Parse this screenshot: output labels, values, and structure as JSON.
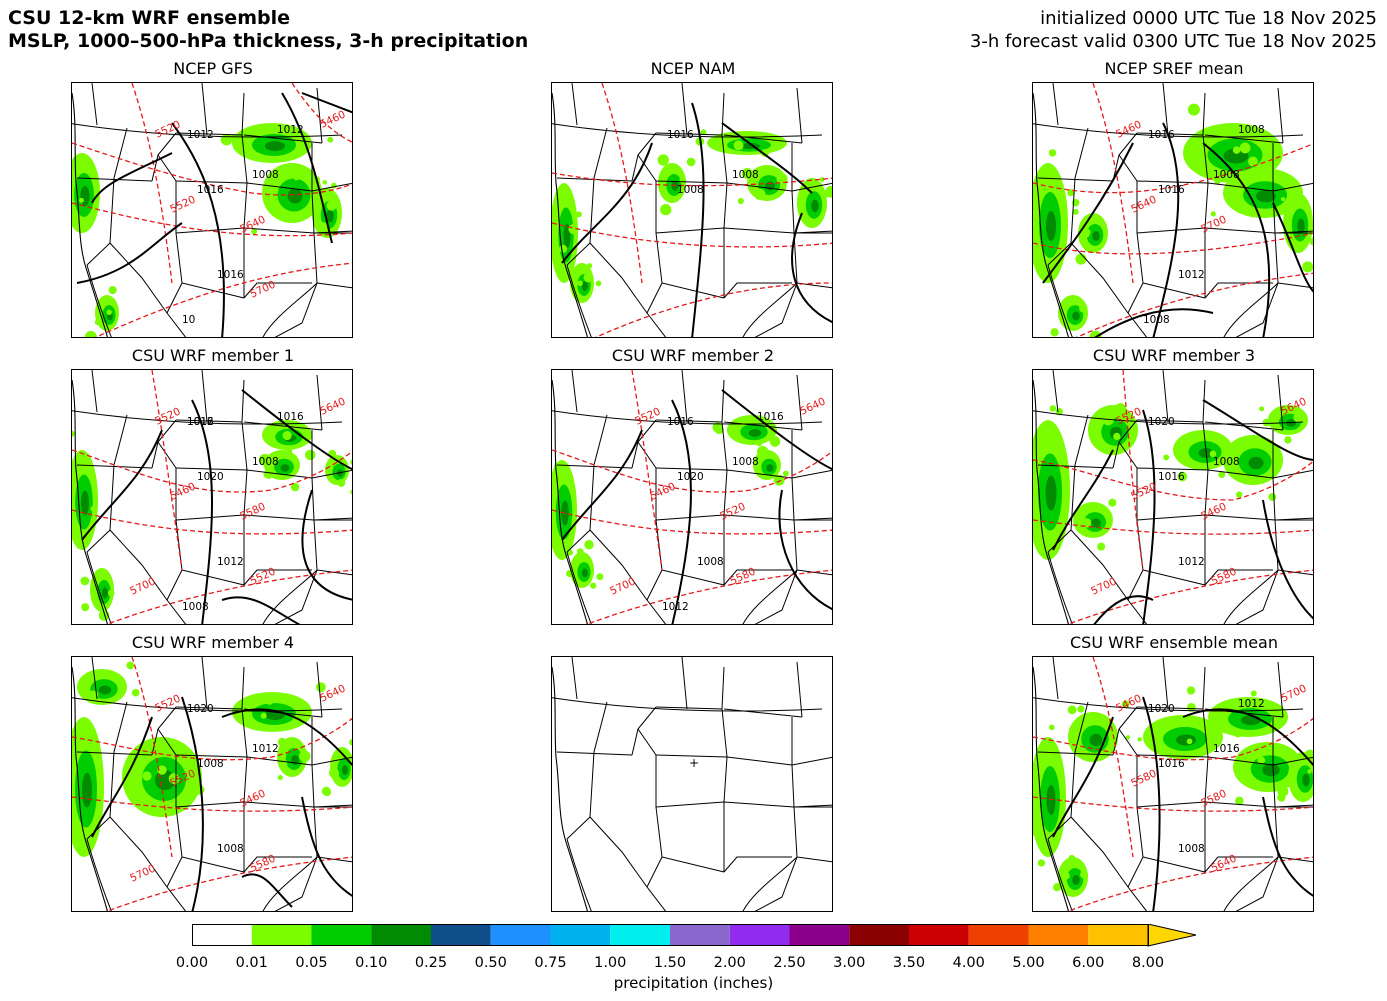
{
  "header": {
    "title_line1": "CSU 12-km WRF ensemble",
    "title_line2": "MSLP, 1000–500-hPa thickness, 3-h precipitation",
    "init_line": "initialized 0000 UTC Tue 18 Nov 2025",
    "valid_line": "3-h forecast valid 0300 UTC Tue 18 Nov 2025"
  },
  "panels": [
    {
      "id": "gfs",
      "title": "NCEP GFS",
      "pressure_labels": [
        "1012",
        "1016",
        "1008",
        "1016",
        "1012",
        "10"
      ],
      "thickness_labels": [
        "5520",
        "5520",
        "5640",
        "5700",
        "5460"
      ]
    },
    {
      "id": "nam",
      "title": "NCEP NAM",
      "pressure_labels": [
        "1016",
        "1008",
        "1008"
      ],
      "thickness_labels": []
    },
    {
      "id": "sref",
      "title": "NCEP SREF mean",
      "pressure_labels": [
        "1016",
        "1016",
        "1008",
        "1012",
        "1008",
        "1008"
      ],
      "thickness_labels": [
        "5460",
        "5640",
        "5700"
      ]
    },
    {
      "id": "m1",
      "title": "CSU WRF member 1",
      "pressure_labels": [
        "1016",
        "1020",
        "1008",
        "1012",
        "1016",
        "1008",
        "1012"
      ],
      "thickness_labels": [
        "5520",
        "5460",
        "5580",
        "5520",
        "5640",
        "5700"
      ]
    },
    {
      "id": "m2",
      "title": "CSU WRF member 2",
      "pressure_labels": [
        "1016",
        "1020",
        "1008",
        "1008",
        "1016",
        "1012"
      ],
      "thickness_labels": [
        "5520",
        "5460",
        "5520",
        "5580",
        "5640",
        "5700"
      ]
    },
    {
      "id": "m3",
      "title": "CSU WRF member 3",
      "pressure_labels": [
        "1020",
        "1016",
        "1008",
        "1012"
      ],
      "thickness_labels": [
        "5520",
        "5520",
        "5460",
        "5580",
        "5640",
        "5700"
      ]
    },
    {
      "id": "m4",
      "title": "CSU WRF member 4",
      "pressure_labels": [
        "1020",
        "1008",
        "1012",
        "1008"
      ],
      "thickness_labels": [
        "5520",
        "5520",
        "5460",
        "5580",
        "5640",
        "5700"
      ]
    },
    {
      "id": "blank",
      "title": "",
      "pressure_labels": [],
      "thickness_labels": []
    },
    {
      "id": "ensmean",
      "title": "CSU WRF ensemble mean",
      "pressure_labels": [
        "1020",
        "1016",
        "1016",
        "1008",
        "1012"
      ],
      "thickness_labels": [
        "5460",
        "5580",
        "5580",
        "5640",
        "5700"
      ]
    }
  ],
  "colorbar": {
    "title": "precipitation (inches)",
    "ticks": [
      "0.00",
      "0.01",
      "0.05",
      "0.10",
      "0.25",
      "0.50",
      "0.75",
      "1.00",
      "1.50",
      "2.00",
      "2.50",
      "3.00",
      "3.50",
      "4.00",
      "5.00",
      "6.00",
      "8.00"
    ],
    "colors": [
      "#ffffff",
      "#7cfc00",
      "#00cd00",
      "#008b00",
      "#104e8b",
      "#1e90ff",
      "#00b2ee",
      "#00eeee",
      "#8968cd",
      "#912cee",
      "#8b008b",
      "#8b0000",
      "#cd0000",
      "#ee4000",
      "#ff7f00",
      "#ffc000",
      "#ffd700"
    ]
  },
  "colors": {
    "pressure_contour": "#000000",
    "thickness_contour": "#e41a1c",
    "border": "#000000"
  }
}
